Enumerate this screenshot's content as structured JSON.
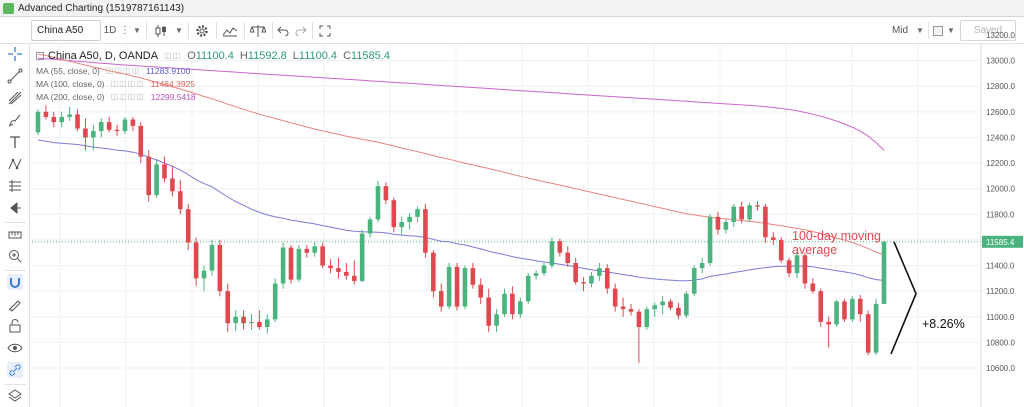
{
  "window": {
    "title": "Advanced Charting (1519787161143)"
  },
  "toolbar": {
    "symbol": "China A50",
    "interval": "1D",
    "price_type": "Mid",
    "saved_label": "Saved"
  },
  "legend": {
    "main": {
      "label": "China A50, D, OANDA",
      "o_label": "O",
      "o": "11100.4",
      "h_label": "H",
      "h": "11592.8",
      "l_label": "L",
      "l": "11100.4",
      "c_label": "C",
      "c": "11585.4"
    },
    "ma55": {
      "label": "MA (55, close, 0)",
      "value": "11283.9100",
      "color": "#7b7bd6"
    },
    "ma100": {
      "label": "MA (100, close, 0)",
      "value": "11484.3925",
      "color": "#e8847c"
    },
    "ma200": {
      "label": "MA (200, close, 0)",
      "value": "12299.5418",
      "color": "#cc66cc"
    }
  },
  "annotations": {
    "ma_label": "100-day moving average",
    "change_label": "+8.26%"
  },
  "colors": {
    "up": "#4bb37d",
    "down": "#e0474f",
    "ma55": "#7b7bd6",
    "ma100": "#e8847c",
    "ma200": "#cc66cc",
    "last_price": "#4bb37d"
  },
  "chart_data": {
    "type": "candlestick",
    "ylim": [
      10500,
      13250
    ],
    "y_ticks": [
      10600,
      10800,
      11000,
      11200,
      11400,
      11600,
      11800,
      12000,
      12200,
      12400,
      12600,
      12800,
      13000,
      13200
    ],
    "y_tick_labels": [
      "10600.0",
      "10800.0",
      "11000.0",
      "11200.0",
      "11400.0",
      "11600.0",
      "11800.0",
      "12000.0",
      "12200.0",
      "12400.0",
      "12600.0",
      "12800.0",
      "13000.0",
      "13200.0"
    ],
    "last_price": 11585.4,
    "last_price_label": "11585.4",
    "candles": [
      {
        "o": 12440,
        "h": 12620,
        "l": 12420,
        "c": 12600
      },
      {
        "o": 12600,
        "h": 12650,
        "l": 12540,
        "c": 12560
      },
      {
        "o": 12560,
        "h": 12600,
        "l": 12480,
        "c": 12520
      },
      {
        "o": 12520,
        "h": 12600,
        "l": 12480,
        "c": 12560
      },
      {
        "o": 12560,
        "h": 12640,
        "l": 12530,
        "c": 12580
      },
      {
        "o": 12580,
        "h": 12620,
        "l": 12450,
        "c": 12470
      },
      {
        "o": 12470,
        "h": 12550,
        "l": 12300,
        "c": 12400
      },
      {
        "o": 12400,
        "h": 12500,
        "l": 12300,
        "c": 12450
      },
      {
        "o": 12450,
        "h": 12550,
        "l": 12400,
        "c": 12520
      },
      {
        "o": 12520,
        "h": 12560,
        "l": 12440,
        "c": 12460
      },
      {
        "o": 12460,
        "h": 12500,
        "l": 12410,
        "c": 12450
      },
      {
        "o": 12450,
        "h": 12560,
        "l": 12430,
        "c": 12540
      },
      {
        "o": 12540,
        "h": 12560,
        "l": 12450,
        "c": 12490
      },
      {
        "o": 12490,
        "h": 12520,
        "l": 12200,
        "c": 12250
      },
      {
        "o": 12250,
        "h": 12300,
        "l": 11900,
        "c": 11950
      },
      {
        "o": 11950,
        "h": 12230,
        "l": 11930,
        "c": 12190
      },
      {
        "o": 12190,
        "h": 12250,
        "l": 12050,
        "c": 12080
      },
      {
        "o": 12080,
        "h": 12180,
        "l": 11940,
        "c": 11980
      },
      {
        "o": 11980,
        "h": 12070,
        "l": 11800,
        "c": 11840
      },
      {
        "o": 11840,
        "h": 11880,
        "l": 11520,
        "c": 11580
      },
      {
        "o": 11580,
        "h": 11620,
        "l": 11240,
        "c": 11300
      },
      {
        "o": 11300,
        "h": 11400,
        "l": 11200,
        "c": 11360
      },
      {
        "o": 11360,
        "h": 11600,
        "l": 11320,
        "c": 11560
      },
      {
        "o": 11560,
        "h": 11600,
        "l": 11160,
        "c": 11200
      },
      {
        "o": 11200,
        "h": 11260,
        "l": 10880,
        "c": 10950
      },
      {
        "o": 10950,
        "h": 11050,
        "l": 10890,
        "c": 11000
      },
      {
        "o": 11000,
        "h": 11050,
        "l": 10900,
        "c": 10950
      },
      {
        "o": 10950,
        "h": 11020,
        "l": 10900,
        "c": 10960
      },
      {
        "o": 10960,
        "h": 11050,
        "l": 10900,
        "c": 10920
      },
      {
        "o": 10920,
        "h": 11020,
        "l": 10870,
        "c": 10980
      },
      {
        "o": 10980,
        "h": 11300,
        "l": 10960,
        "c": 11260
      },
      {
        "o": 11260,
        "h": 11580,
        "l": 11220,
        "c": 11540
      },
      {
        "o": 11540,
        "h": 11560,
        "l": 11260,
        "c": 11290
      },
      {
        "o": 11290,
        "h": 11560,
        "l": 11270,
        "c": 11530
      },
      {
        "o": 11530,
        "h": 11560,
        "l": 11460,
        "c": 11500
      },
      {
        "o": 11500,
        "h": 11580,
        "l": 11470,
        "c": 11550
      },
      {
        "o": 11550,
        "h": 11580,
        "l": 11380,
        "c": 11400
      },
      {
        "o": 11400,
        "h": 11450,
        "l": 11340,
        "c": 11380
      },
      {
        "o": 11380,
        "h": 11460,
        "l": 11300,
        "c": 11350
      },
      {
        "o": 11350,
        "h": 11420,
        "l": 11290,
        "c": 11320
      },
      {
        "o": 11320,
        "h": 11440,
        "l": 11250,
        "c": 11280
      },
      {
        "o": 11280,
        "h": 11680,
        "l": 11270,
        "c": 11650
      },
      {
        "o": 11650,
        "h": 11780,
        "l": 11620,
        "c": 11760
      },
      {
        "o": 11760,
        "h": 12060,
        "l": 11740,
        "c": 12020
      },
      {
        "o": 12020,
        "h": 12050,
        "l": 11880,
        "c": 11910
      },
      {
        "o": 11910,
        "h": 11930,
        "l": 11660,
        "c": 11700
      },
      {
        "o": 11700,
        "h": 11780,
        "l": 11640,
        "c": 11740
      },
      {
        "o": 11740,
        "h": 11810,
        "l": 11680,
        "c": 11780
      },
      {
        "o": 11780,
        "h": 11860,
        "l": 11740,
        "c": 11840
      },
      {
        "o": 11840,
        "h": 11880,
        "l": 11460,
        "c": 11500
      },
      {
        "o": 11500,
        "h": 11520,
        "l": 11150,
        "c": 11200
      },
      {
        "o": 11200,
        "h": 11260,
        "l": 11040,
        "c": 11080
      },
      {
        "o": 11080,
        "h": 11420,
        "l": 11060,
        "c": 11390
      },
      {
        "o": 11390,
        "h": 11420,
        "l": 11050,
        "c": 11080
      },
      {
        "o": 11080,
        "h": 11400,
        "l": 11060,
        "c": 11380
      },
      {
        "o": 11380,
        "h": 11420,
        "l": 11220,
        "c": 11250
      },
      {
        "o": 11250,
        "h": 11300,
        "l": 11100,
        "c": 11150
      },
      {
        "o": 11150,
        "h": 11220,
        "l": 10880,
        "c": 10930
      },
      {
        "o": 10930,
        "h": 11060,
        "l": 10880,
        "c": 11020
      },
      {
        "o": 11020,
        "h": 11220,
        "l": 11000,
        "c": 11180
      },
      {
        "o": 11180,
        "h": 11240,
        "l": 10980,
        "c": 11020
      },
      {
        "o": 11020,
        "h": 11150,
        "l": 10990,
        "c": 11120
      },
      {
        "o": 11120,
        "h": 11340,
        "l": 11100,
        "c": 11320
      },
      {
        "o": 11320,
        "h": 11360,
        "l": 11290,
        "c": 11340
      },
      {
        "o": 11340,
        "h": 11420,
        "l": 11320,
        "c": 11400
      },
      {
        "o": 11400,
        "h": 11620,
        "l": 11380,
        "c": 11590
      },
      {
        "o": 11590,
        "h": 11610,
        "l": 11470,
        "c": 11500
      },
      {
        "o": 11500,
        "h": 11550,
        "l": 11390,
        "c": 11420
      },
      {
        "o": 11420,
        "h": 11460,
        "l": 11250,
        "c": 11270
      },
      {
        "o": 11270,
        "h": 11310,
        "l": 11200,
        "c": 11260
      },
      {
        "o": 11260,
        "h": 11350,
        "l": 11230,
        "c": 11320
      },
      {
        "o": 11320,
        "h": 11420,
        "l": 11280,
        "c": 11380
      },
      {
        "o": 11380,
        "h": 11410,
        "l": 11180,
        "c": 11220
      },
      {
        "o": 11220,
        "h": 11260,
        "l": 11040,
        "c": 11080
      },
      {
        "o": 11080,
        "h": 11150,
        "l": 11000,
        "c": 11060
      },
      {
        "o": 11060,
        "h": 11100,
        "l": 11010,
        "c": 11040
      },
      {
        "o": 11040,
        "h": 11060,
        "l": 10640,
        "c": 10920
      },
      {
        "o": 10920,
        "h": 11080,
        "l": 10900,
        "c": 11060
      },
      {
        "o": 11060,
        "h": 11110,
        "l": 11000,
        "c": 11090
      },
      {
        "o": 11090,
        "h": 11160,
        "l": 11020,
        "c": 11120
      },
      {
        "o": 11120,
        "h": 11140,
        "l": 11050,
        "c": 11070
      },
      {
        "o": 11070,
        "h": 11110,
        "l": 10980,
        "c": 11010
      },
      {
        "o": 11010,
        "h": 11200,
        "l": 10990,
        "c": 11180
      },
      {
        "o": 11180,
        "h": 11400,
        "l": 11160,
        "c": 11380
      },
      {
        "o": 11380,
        "h": 11460,
        "l": 11340,
        "c": 11420
      },
      {
        "o": 11420,
        "h": 11800,
        "l": 11400,
        "c": 11780
      },
      {
        "o": 11780,
        "h": 11820,
        "l": 11640,
        "c": 11680
      },
      {
        "o": 11680,
        "h": 11760,
        "l": 11650,
        "c": 11740
      },
      {
        "o": 11740,
        "h": 11880,
        "l": 11700,
        "c": 11860
      },
      {
        "o": 11860,
        "h": 11900,
        "l": 11730,
        "c": 11760
      },
      {
        "o": 11760,
        "h": 11890,
        "l": 11740,
        "c": 11870
      },
      {
        "o": 11870,
        "h": 11900,
        "l": 11830,
        "c": 11860
      },
      {
        "o": 11860,
        "h": 11880,
        "l": 11580,
        "c": 11620
      },
      {
        "o": 11620,
        "h": 11660,
        "l": 11560,
        "c": 11600
      },
      {
        "o": 11600,
        "h": 11620,
        "l": 11420,
        "c": 11440
      },
      {
        "o": 11440,
        "h": 11460,
        "l": 11310,
        "c": 11340
      },
      {
        "o": 11340,
        "h": 11500,
        "l": 11300,
        "c": 11480
      },
      {
        "o": 11480,
        "h": 11500,
        "l": 11220,
        "c": 11260
      },
      {
        "o": 11260,
        "h": 11300,
        "l": 11180,
        "c": 11200
      },
      {
        "o": 11200,
        "h": 11220,
        "l": 10920,
        "c": 10960
      },
      {
        "o": 10960,
        "h": 11000,
        "l": 10760,
        "c": 10940
      },
      {
        "o": 10940,
        "h": 11130,
        "l": 10920,
        "c": 11120
      },
      {
        "o": 11120,
        "h": 11140,
        "l": 10960,
        "c": 10980
      },
      {
        "o": 10980,
        "h": 11160,
        "l": 10960,
        "c": 11140
      },
      {
        "o": 11140,
        "h": 11170,
        "l": 10960,
        "c": 11020
      },
      {
        "o": 11020,
        "h": 11050,
        "l": 10700,
        "c": 10720
      },
      {
        "o": 10720,
        "h": 11140,
        "l": 10700,
        "c": 11100
      },
      {
        "o": 11100.4,
        "h": 11592.8,
        "l": 11100.4,
        "c": 11585.4
      }
    ],
    "ma55": [
      12380,
      12370,
      12360,
      12355,
      12350,
      12345,
      12335,
      12325,
      12318,
      12310,
      12300,
      12295,
      12285,
      12270,
      12245,
      12225,
      12200,
      12175,
      12145,
      12110,
      12070,
      12040,
      12015,
      11975,
      11935,
      11900,
      11870,
      11840,
      11815,
      11795,
      11780,
      11770,
      11755,
      11745,
      11735,
      11725,
      11712,
      11700,
      11688,
      11676,
      11668,
      11664,
      11662,
      11660,
      11655,
      11645,
      11638,
      11632,
      11628,
      11620,
      11605,
      11590,
      11585,
      11570,
      11560,
      11545,
      11530,
      11512,
      11498,
      11485,
      11470,
      11458,
      11448,
      11438,
      11428,
      11420,
      11410,
      11400,
      11390,
      11378,
      11366,
      11360,
      11350,
      11340,
      11330,
      11320,
      11310,
      11302,
      11296,
      11290,
      11286,
      11282,
      11282,
      11286,
      11296,
      11315,
      11325,
      11334,
      11346,
      11356,
      11366,
      11376,
      11384,
      11390,
      11394,
      11394,
      11396,
      11396,
      11390,
      11380,
      11370,
      11360,
      11350,
      11340,
      11325,
      11305,
      11290,
      11283.91
    ],
    "ma100_start_index": 0,
    "ma100": [
      13050,
      13040,
      13025,
      13010,
      12995,
      12980,
      12965,
      12950,
      12935,
      12920,
      12908,
      12895,
      12880,
      12865,
      12848,
      12830,
      12812,
      12795,
      12778,
      12760,
      12740,
      12720,
      12702,
      12682,
      12660,
      12640,
      12620,
      12600,
      12582,
      12565,
      12548,
      12532,
      12515,
      12498,
      12482,
      12466,
      12452,
      12438,
      12424,
      12410,
      12397,
      12385,
      12375,
      12362,
      12348,
      12333,
      12318,
      12304,
      12290,
      12274,
      12258,
      12243,
      12230,
      12215,
      12200,
      12186,
      12172,
      12158,
      12143,
      12128,
      12112,
      12097,
      12083,
      12069,
      12055,
      12042,
      12028,
      12015,
      12000,
      11986,
      11972,
      11958,
      11944,
      11930,
      11916,
      11902,
      11888,
      11874,
      11860,
      11846,
      11832,
      11818,
      11805,
      11795,
      11786,
      11778,
      11770,
      11764,
      11758,
      11752,
      11745,
      11738,
      11730,
      11720,
      11710,
      11700,
      11690,
      11680,
      11665,
      11650,
      11633,
      11615,
      11598,
      11580,
      11558,
      11532,
      11505,
      11484.39
    ],
    "ma200": [
      13020,
      13015,
      13010,
      13005,
      13000,
      12995,
      12990,
      12985,
      12980,
      12975,
      12970,
      12966,
      12962,
      12958,
      12954,
      12950,
      12946,
      12942,
      12938,
      12934,
      12930,
      12926,
      12922,
      12918,
      12914,
      12910,
      12906,
      12902,
      12898,
      12894,
      12890,
      12886,
      12882,
      12878,
      12874,
      12870,
      12866,
      12862,
      12858,
      12854,
      12850,
      12846,
      12842,
      12838,
      12834,
      12830,
      12826,
      12822,
      12818,
      12814,
      12810,
      12806,
      12802,
      12798,
      12794,
      12790,
      12786,
      12782,
      12778,
      12774,
      12770,
      12766,
      12762,
      12758,
      12754,
      12750,
      12746,
      12742,
      12738,
      12734,
      12730,
      12726,
      12722,
      12718,
      12714,
      12710,
      12706,
      12702,
      12698,
      12694,
      12690,
      12686,
      12682,
      12678,
      12674,
      12670,
      12666,
      12662,
      12658,
      12654,
      12650,
      12646,
      12640,
      12634,
      12626,
      12618,
      12608,
      12596,
      12582,
      12566,
      12548,
      12528,
      12506,
      12480,
      12450,
      12410,
      12360,
      12299.54
    ]
  }
}
